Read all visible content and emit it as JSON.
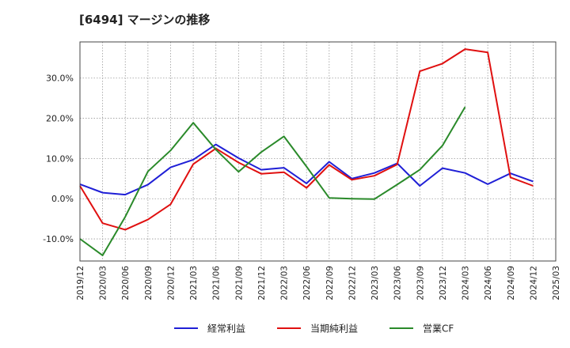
{
  "title": "[6494]  マージンの推移",
  "chart_data": {
    "type": "line",
    "x": [
      "2019/12",
      "2020/03",
      "2020/06",
      "2020/09",
      "2020/12",
      "2021/03",
      "2021/06",
      "2021/09",
      "2021/12",
      "2022/03",
      "2022/06",
      "2022/09",
      "2022/12",
      "2023/03",
      "2023/06",
      "2023/09",
      "2023/12",
      "2024/03",
      "2024/06",
      "2024/09",
      "2024/12",
      "2025/03"
    ],
    "ylim": [
      -15.5,
      39
    ],
    "yticks": [
      -10,
      0,
      10,
      20,
      30
    ],
    "ytick_labels": [
      "-10.0%",
      "0.0%",
      "10.0%",
      "20.0%",
      "30.0%"
    ],
    "grid": true,
    "legend_position": "bottom",
    "series": [
      {
        "name": "経常利益",
        "color": "#1f1fd6",
        "values": [
          3.6,
          1.5,
          1.0,
          3.5,
          7.8,
          9.7,
          13.5,
          10.1,
          7.2,
          7.7,
          3.8,
          9.2,
          5.0,
          6.4,
          8.8,
          3.2,
          7.6,
          6.4,
          3.6,
          6.3,
          4.3,
          null
        ]
      },
      {
        "name": "当期純利益",
        "color": "#e01010",
        "values": [
          3.2,
          -6.1,
          -7.7,
          -5.2,
          -1.4,
          8.6,
          12.5,
          9.0,
          6.2,
          6.6,
          2.7,
          8.4,
          4.7,
          5.7,
          8.5,
          31.7,
          33.6,
          37.2,
          36.4,
          5.3,
          3.2,
          null
        ]
      },
      {
        "name": "営業CF",
        "color": "#2a8a2a",
        "values": [
          -10.0,
          -14.1,
          -4.5,
          6.8,
          12.0,
          18.9,
          12.2,
          6.7,
          11.6,
          15.5,
          8.0,
          0.2,
          0.0,
          -0.1,
          3.5,
          7.2,
          13.2,
          22.8,
          null,
          null,
          null,
          null
        ]
      }
    ]
  }
}
